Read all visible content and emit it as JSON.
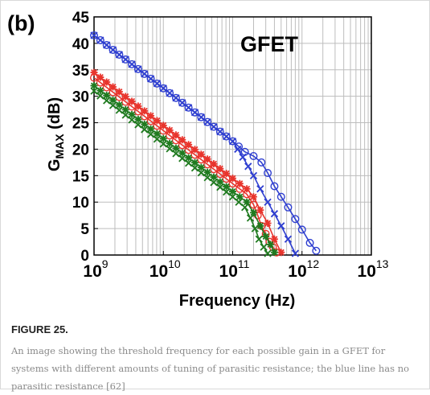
{
  "figure": {
    "panel_label": "(b)",
    "label": "FIGURE 25.",
    "caption": "An image showing the threshold frequency for each possible gain in a GFET for systems with different amounts of tuning of parasitic resistance; the blue line has no parasitic resistance ",
    "citation": "[62]"
  },
  "chart_data": {
    "type": "line",
    "title": "GFET",
    "xlabel": "Frequency (Hz)",
    "ylabel": "G",
    "ylabel_subscript": "MAX",
    "ylabel_unit": " (dB)",
    "x_scale": "log",
    "xlim": [
      1000000000.0,
      10000000000000.0
    ],
    "ylim": [
      0,
      45
    ],
    "x_ticks": [
      {
        "base": "10",
        "exp": "9"
      },
      {
        "base": "10",
        "exp": "10"
      },
      {
        "base": "10",
        "exp": "11"
      },
      {
        "base": "10",
        "exp": "12"
      },
      {
        "base": "10",
        "exp": "13"
      }
    ],
    "y_ticks": [
      "0",
      "5",
      "10",
      "15",
      "20",
      "25",
      "30",
      "35",
      "40",
      "45"
    ],
    "grid": true,
    "colors": {
      "blue": "#2f3fd0",
      "red": "#e8342c",
      "green": "#1f7a1f",
      "grid": "#bdbdbd",
      "axis": "#000000"
    },
    "series": [
      {
        "color": "blue",
        "marker": "circle",
        "x": [
          1000000000.0,
          10000000000.0,
          100000000000.0,
          150000000000.0,
          200000000000.0,
          260000000000.0,
          320000000000.0,
          400000000000.0,
          500000000000.0,
          630000000000.0,
          800000000000.0,
          1000000000000.0,
          1300000000000.0,
          1600000000000.0
        ],
        "y": [
          41.5,
          31.5,
          21.5,
          19.5,
          18.7,
          17.5,
          15.5,
          13,
          11,
          9,
          6.8,
          4.8,
          2.3,
          0.8
        ]
      },
      {
        "color": "blue",
        "marker": "x",
        "x": [
          1000000000.0,
          10000000000.0,
          100000000000.0,
          140000000000.0,
          200000000000.0,
          250000000000.0,
          320000000000.0,
          400000000000.0,
          500000000000.0,
          630000000000.0,
          800000000000.0
        ],
        "y": [
          41.5,
          31.5,
          21.5,
          18.5,
          15,
          12.5,
          10,
          7.8,
          5.5,
          3,
          0.3
        ]
      },
      {
        "color": "red",
        "marker": "star",
        "x": [
          1000000000.0,
          10000000000.0,
          100000000000.0,
          160000000000.0,
          200000000000.0,
          250000000000.0,
          320000000000.0,
          400000000000.0,
          500000000000.0
        ],
        "y": [
          34.5,
          24.5,
          14.5,
          12.5,
          11,
          8.5,
          6,
          3,
          0.5
        ]
      },
      {
        "color": "red",
        "marker": "circle",
        "x": [
          1000000000.0,
          10000000000.0,
          100000000000.0,
          160000000000.0,
          200000000000.0,
          230000000000.0,
          260000000000.0,
          300000000000.0,
          340000000000.0,
          380000000000.0,
          430000000000.0
        ],
        "y": [
          33.5,
          23.5,
          13.5,
          11.5,
          9.5,
          7.5,
          5.5,
          4,
          2.5,
          1.5,
          0.5
        ]
      },
      {
        "color": "green",
        "marker": "star",
        "x": [
          1000000000.0,
          10000000000.0,
          100000000000.0,
          160000000000.0,
          200000000000.0,
          250000000000.0,
          300000000000.0,
          350000000000.0,
          400000000000.0
        ],
        "y": [
          32,
          22,
          12,
          10,
          8,
          5.5,
          3.5,
          2,
          0.5
        ]
      },
      {
        "color": "green",
        "marker": "x",
        "x": [
          1000000000.0,
          10000000000.0,
          100000000000.0,
          150000000000.0,
          180000000000.0,
          210000000000.0,
          240000000000.0,
          280000000000.0,
          320000000000.0
        ],
        "y": [
          31,
          21,
          11,
          9,
          7,
          5,
          3,
          1.5,
          0.3
        ]
      }
    ]
  }
}
